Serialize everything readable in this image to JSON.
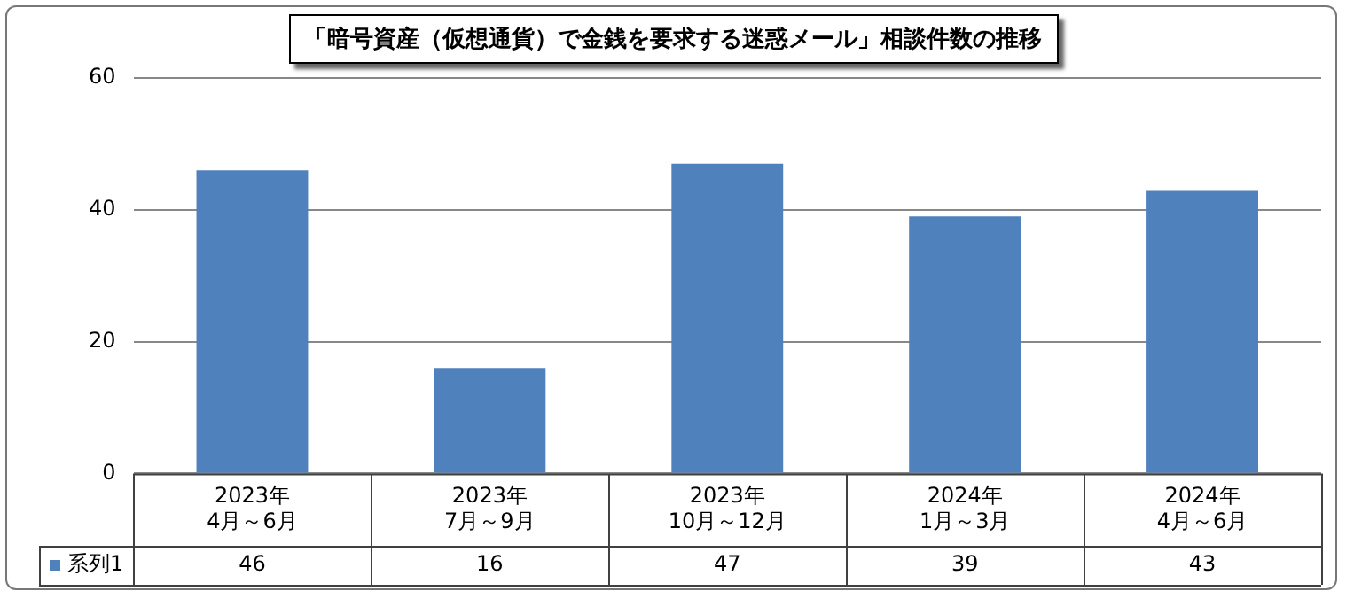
{
  "chart_data": {
    "type": "bar",
    "title": "「暗号資産（仮想通貨）で金銭を要求する迷惑メール」相談件数の推移",
    "categories": [
      "2023年\n4月～6月",
      "2023年\n7月～9月",
      "2023年\n10月～12月",
      "2024年\n1月～3月",
      "2024年\n4月～6月"
    ],
    "series": [
      {
        "name": "系列1",
        "color": "#4f81bd",
        "values": [
          46,
          16,
          47,
          39,
          43
        ]
      }
    ],
    "ylim": [
      0,
      60
    ],
    "yticks": [
      0,
      20,
      40,
      60
    ],
    "grid": "y",
    "legend": "bottom",
    "data_labels": true
  }
}
